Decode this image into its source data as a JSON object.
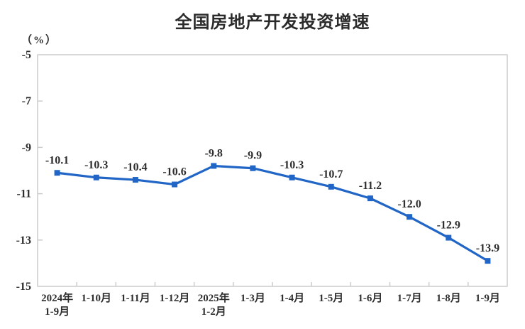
{
  "chart": {
    "title": "全国房地产开发投资增速",
    "unit_label": "（%）"
  },
  "chart_data": {
    "type": "line",
    "title": "全国房地产开发投资增速",
    "ylabel": "（%）",
    "xlabel": "",
    "categories": [
      "2024年\n1-9月",
      "1-10月",
      "1-11月",
      "1-12月",
      "2025年\n1-2月",
      "1-3月",
      "1-4月",
      "1-5月",
      "1-6月",
      "1-7月",
      "1-8月",
      "1-9月"
    ],
    "values": [
      -10.1,
      -10.3,
      -10.4,
      -10.6,
      -9.8,
      -9.9,
      -10.3,
      -10.7,
      -11.2,
      -12.0,
      -12.9,
      -13.9
    ],
    "point_labels": [
      "-10.1",
      "-10.3",
      "-10.4",
      "-10.6",
      "-9.8",
      "-9.9",
      "-10.3",
      "-10.7",
      "-11.2",
      "-12.0",
      "-12.9",
      "-13.9"
    ],
    "ylim": [
      -15,
      -5
    ],
    "yticks": [
      -5,
      -7,
      -9,
      -11,
      -13,
      -15
    ],
    "grid": false,
    "legend_position": "none",
    "line_color": "#2166c6",
    "marker_shape": "square",
    "label_color": "#2e2e2e",
    "axis_color": "#c9c9c9",
    "title_color": "#2b2b2b"
  }
}
